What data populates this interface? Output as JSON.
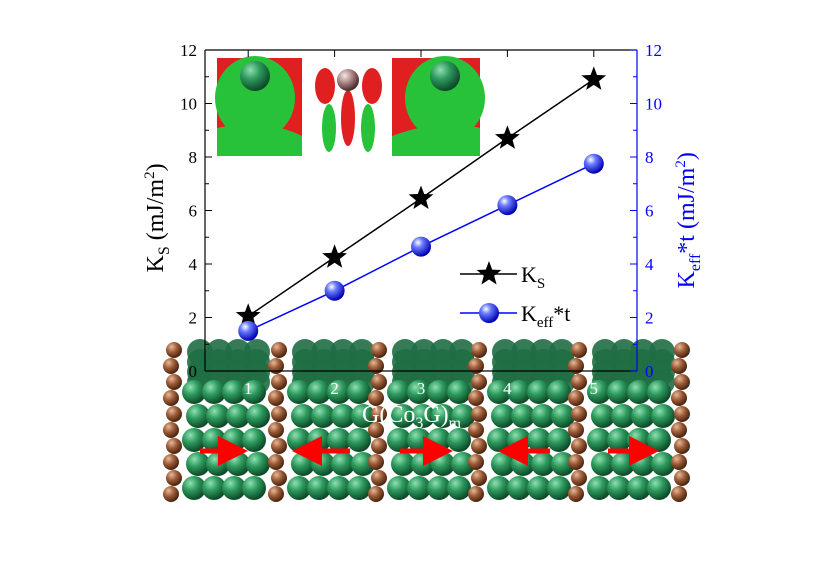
{
  "chart_data": {
    "type": "line",
    "x": [
      1,
      2,
      3,
      4,
      5
    ],
    "xlabel_parts": {
      "base": "G(Co",
      "sub1": "3",
      "mid": "G)",
      "sub2": "m"
    },
    "x_ticks": [
      "1",
      "2",
      "3",
      "4",
      "5"
    ],
    "xlim": [
      0.5,
      5.5
    ],
    "ylim_left": [
      0,
      12
    ],
    "ylim_right": [
      0,
      12
    ],
    "y_ticks_left": [
      "0",
      "2",
      "4",
      "6",
      "8",
      "10",
      "12"
    ],
    "y_ticks_right": [
      "0",
      "2",
      "4",
      "6",
      "8",
      "10",
      "12"
    ],
    "ylabel_left_parts": {
      "base": "K",
      "sub": "S",
      "rest": " (mJ/m",
      "sup": "2",
      "end": ")"
    },
    "ylabel_right_parts": {
      "base": "K",
      "sub": "eff",
      "rest": "*t (mJ/m",
      "sup": "2",
      "end": ")"
    },
    "series": [
      {
        "label_base": "K",
        "label_sub": "S",
        "label_rest": "",
        "axis": "left",
        "color": "#000000",
        "marker": "star",
        "values": [
          2.05,
          4.25,
          6.45,
          8.7,
          10.9
        ]
      },
      {
        "label_base": "K",
        "label_sub": "eff",
        "label_rest": "*t",
        "axis": "right",
        "color": "#0000ff",
        "marker": "sphere",
        "values": [
          1.5,
          3.0,
          4.65,
          6.2,
          7.75
        ]
      }
    ],
    "legend_position": "center-right",
    "grid": false,
    "colors": {
      "left_axis": "#000000",
      "right_axis": "#0000ff",
      "tick_labels_overlay": "#ffffff"
    }
  }
}
